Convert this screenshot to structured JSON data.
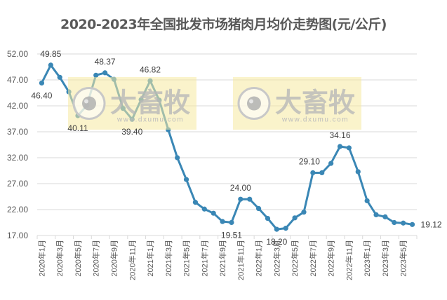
{
  "chart_data": {
    "type": "line",
    "title": "2020-2023年全国批发市场猪肉月均价走势图(元/公斤)",
    "xlabel": "",
    "ylabel": "",
    "ylim": [
      17,
      52
    ],
    "y_ticks": [
      "52.00",
      "47.00",
      "42.00",
      "37.00",
      "32.00",
      "27.00",
      "22.00",
      "17.00"
    ],
    "grid": true,
    "legend": null,
    "x": [
      "2020年1月",
      "2020年2月",
      "2020年3月",
      "2020年4月",
      "2020年5月",
      "2020年6月",
      "2020年7月",
      "2020年8月",
      "2020年9月",
      "2020年10月",
      "2020年11月",
      "2020年12月",
      "2021年1月",
      "2021年2月",
      "2021年3月",
      "2021年4月",
      "2021年5月",
      "2021年6月",
      "2021年7月",
      "2021年8月",
      "2021年9月",
      "2021年10月",
      "2021年11月",
      "2021年12月",
      "2022年1月",
      "2022年2月",
      "2022年3月",
      "2022年4月",
      "2022年5月",
      "2022年6月",
      "2022年7月",
      "2022年8月",
      "2022年9月",
      "2022年10月",
      "2022年11月",
      "2022年12月",
      "2023年1月",
      "2023年2月",
      "2023年3月",
      "2023年4月",
      "2023年5月",
      "2023年6月"
    ],
    "x_tick_labels": [
      "2020年1月",
      "2020年3月",
      "2020年5月",
      "2020年7月",
      "2020年9月",
      "2020年11月",
      "2021年1月",
      "2021年3月",
      "2021年5月",
      "2021年7月",
      "2021年9月",
      "2021年11月",
      "2022年1月",
      "2022年3月",
      "2022年5月",
      "2022年7月",
      "2022年9月",
      "2022年11月",
      "2023年1月",
      "2023年3月",
      "2023年5月"
    ],
    "series": [
      {
        "name": "猪肉月均价",
        "color": "#3A87B5",
        "values": [
          46.4,
          49.85,
          47.5,
          44.7,
          40.11,
          42.1,
          47.9,
          48.37,
          47.1,
          41.5,
          39.4,
          43.2,
          46.82,
          43.1,
          37.4,
          32.0,
          27.8,
          23.4,
          22.1,
          21.3,
          19.7,
          19.51,
          24.0,
          24.0,
          22.2,
          20.3,
          18.2,
          18.4,
          20.4,
          21.5,
          29.1,
          29.1,
          30.9,
          34.16,
          33.9,
          29.3,
          23.7,
          21.0,
          20.6,
          19.5,
          19.4,
          19.12
        ]
      }
    ],
    "annotations": [
      {
        "index": 0,
        "text": "46.40",
        "pos": "below"
      },
      {
        "index": 1,
        "text": "49.85",
        "pos": "above"
      },
      {
        "index": 4,
        "text": "40.11",
        "pos": "below"
      },
      {
        "index": 7,
        "text": "48.37",
        "pos": "above"
      },
      {
        "index": 10,
        "text": "39.40",
        "pos": "below"
      },
      {
        "index": 12,
        "text": "46.82",
        "pos": "above"
      },
      {
        "index": 21,
        "text": "19.51",
        "pos": "below"
      },
      {
        "index": 22,
        "text": "24.00",
        "pos": "above"
      },
      {
        "index": 26,
        "text": "18.20",
        "pos": "below"
      },
      {
        "index": 30,
        "text": "29.10",
        "pos": "above-left"
      },
      {
        "index": 33,
        "text": "34.16",
        "pos": "above"
      },
      {
        "index": 41,
        "text": "19.12",
        "pos": "right"
      }
    ]
  },
  "watermark": {
    "brand_text": "大畜牧",
    "url_text": "www.dxumu.com"
  }
}
